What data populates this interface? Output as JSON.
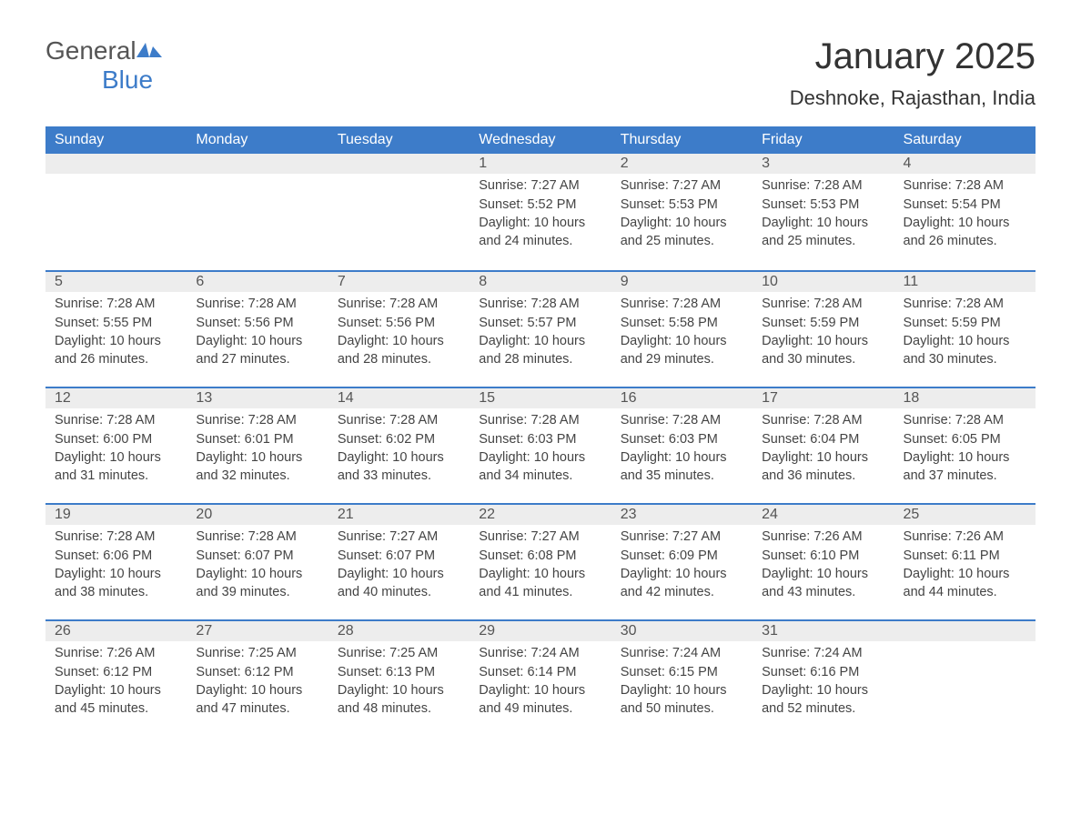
{
  "logo": {
    "word1": "General",
    "word2": "Blue"
  },
  "title": "January 2025",
  "location": "Deshnoke, Rajasthan, India",
  "colors": {
    "header_bg": "#3d7cc9",
    "header_text": "#ffffff",
    "daynum_bg": "#ededed",
    "text": "#444444",
    "accent": "#3d7cc9"
  },
  "typography": {
    "title_fontsize": 40,
    "location_fontsize": 22,
    "header_fontsize": 16,
    "cell_fontsize": 14.5,
    "font_family": "Arial"
  },
  "day_names": [
    "Sunday",
    "Monday",
    "Tuesday",
    "Wednesday",
    "Thursday",
    "Friday",
    "Saturday"
  ],
  "weeks": [
    [
      {
        "n": "",
        "sr": "",
        "ss": "",
        "dl": ""
      },
      {
        "n": "",
        "sr": "",
        "ss": "",
        "dl": ""
      },
      {
        "n": "",
        "sr": "",
        "ss": "",
        "dl": ""
      },
      {
        "n": "1",
        "sr": "Sunrise: 7:27 AM",
        "ss": "Sunset: 5:52 PM",
        "dl": "Daylight: 10 hours and 24 minutes."
      },
      {
        "n": "2",
        "sr": "Sunrise: 7:27 AM",
        "ss": "Sunset: 5:53 PM",
        "dl": "Daylight: 10 hours and 25 minutes."
      },
      {
        "n": "3",
        "sr": "Sunrise: 7:28 AM",
        "ss": "Sunset: 5:53 PM",
        "dl": "Daylight: 10 hours and 25 minutes."
      },
      {
        "n": "4",
        "sr": "Sunrise: 7:28 AM",
        "ss": "Sunset: 5:54 PM",
        "dl": "Daylight: 10 hours and 26 minutes."
      }
    ],
    [
      {
        "n": "5",
        "sr": "Sunrise: 7:28 AM",
        "ss": "Sunset: 5:55 PM",
        "dl": "Daylight: 10 hours and 26 minutes."
      },
      {
        "n": "6",
        "sr": "Sunrise: 7:28 AM",
        "ss": "Sunset: 5:56 PM",
        "dl": "Daylight: 10 hours and 27 minutes."
      },
      {
        "n": "7",
        "sr": "Sunrise: 7:28 AM",
        "ss": "Sunset: 5:56 PM",
        "dl": "Daylight: 10 hours and 28 minutes."
      },
      {
        "n": "8",
        "sr": "Sunrise: 7:28 AM",
        "ss": "Sunset: 5:57 PM",
        "dl": "Daylight: 10 hours and 28 minutes."
      },
      {
        "n": "9",
        "sr": "Sunrise: 7:28 AM",
        "ss": "Sunset: 5:58 PM",
        "dl": "Daylight: 10 hours and 29 minutes."
      },
      {
        "n": "10",
        "sr": "Sunrise: 7:28 AM",
        "ss": "Sunset: 5:59 PM",
        "dl": "Daylight: 10 hours and 30 minutes."
      },
      {
        "n": "11",
        "sr": "Sunrise: 7:28 AM",
        "ss": "Sunset: 5:59 PM",
        "dl": "Daylight: 10 hours and 30 minutes."
      }
    ],
    [
      {
        "n": "12",
        "sr": "Sunrise: 7:28 AM",
        "ss": "Sunset: 6:00 PM",
        "dl": "Daylight: 10 hours and 31 minutes."
      },
      {
        "n": "13",
        "sr": "Sunrise: 7:28 AM",
        "ss": "Sunset: 6:01 PM",
        "dl": "Daylight: 10 hours and 32 minutes."
      },
      {
        "n": "14",
        "sr": "Sunrise: 7:28 AM",
        "ss": "Sunset: 6:02 PM",
        "dl": "Daylight: 10 hours and 33 minutes."
      },
      {
        "n": "15",
        "sr": "Sunrise: 7:28 AM",
        "ss": "Sunset: 6:03 PM",
        "dl": "Daylight: 10 hours and 34 minutes."
      },
      {
        "n": "16",
        "sr": "Sunrise: 7:28 AM",
        "ss": "Sunset: 6:03 PM",
        "dl": "Daylight: 10 hours and 35 minutes."
      },
      {
        "n": "17",
        "sr": "Sunrise: 7:28 AM",
        "ss": "Sunset: 6:04 PM",
        "dl": "Daylight: 10 hours and 36 minutes."
      },
      {
        "n": "18",
        "sr": "Sunrise: 7:28 AM",
        "ss": "Sunset: 6:05 PM",
        "dl": "Daylight: 10 hours and 37 minutes."
      }
    ],
    [
      {
        "n": "19",
        "sr": "Sunrise: 7:28 AM",
        "ss": "Sunset: 6:06 PM",
        "dl": "Daylight: 10 hours and 38 minutes."
      },
      {
        "n": "20",
        "sr": "Sunrise: 7:28 AM",
        "ss": "Sunset: 6:07 PM",
        "dl": "Daylight: 10 hours and 39 minutes."
      },
      {
        "n": "21",
        "sr": "Sunrise: 7:27 AM",
        "ss": "Sunset: 6:07 PM",
        "dl": "Daylight: 10 hours and 40 minutes."
      },
      {
        "n": "22",
        "sr": "Sunrise: 7:27 AM",
        "ss": "Sunset: 6:08 PM",
        "dl": "Daylight: 10 hours and 41 minutes."
      },
      {
        "n": "23",
        "sr": "Sunrise: 7:27 AM",
        "ss": "Sunset: 6:09 PM",
        "dl": "Daylight: 10 hours and 42 minutes."
      },
      {
        "n": "24",
        "sr": "Sunrise: 7:26 AM",
        "ss": "Sunset: 6:10 PM",
        "dl": "Daylight: 10 hours and 43 minutes."
      },
      {
        "n": "25",
        "sr": "Sunrise: 7:26 AM",
        "ss": "Sunset: 6:11 PM",
        "dl": "Daylight: 10 hours and 44 minutes."
      }
    ],
    [
      {
        "n": "26",
        "sr": "Sunrise: 7:26 AM",
        "ss": "Sunset: 6:12 PM",
        "dl": "Daylight: 10 hours and 45 minutes."
      },
      {
        "n": "27",
        "sr": "Sunrise: 7:25 AM",
        "ss": "Sunset: 6:12 PM",
        "dl": "Daylight: 10 hours and 47 minutes."
      },
      {
        "n": "28",
        "sr": "Sunrise: 7:25 AM",
        "ss": "Sunset: 6:13 PM",
        "dl": "Daylight: 10 hours and 48 minutes."
      },
      {
        "n": "29",
        "sr": "Sunrise: 7:24 AM",
        "ss": "Sunset: 6:14 PM",
        "dl": "Daylight: 10 hours and 49 minutes."
      },
      {
        "n": "30",
        "sr": "Sunrise: 7:24 AM",
        "ss": "Sunset: 6:15 PM",
        "dl": "Daylight: 10 hours and 50 minutes."
      },
      {
        "n": "31",
        "sr": "Sunrise: 7:24 AM",
        "ss": "Sunset: 6:16 PM",
        "dl": "Daylight: 10 hours and 52 minutes."
      },
      {
        "n": "",
        "sr": "",
        "ss": "",
        "dl": ""
      }
    ]
  ]
}
